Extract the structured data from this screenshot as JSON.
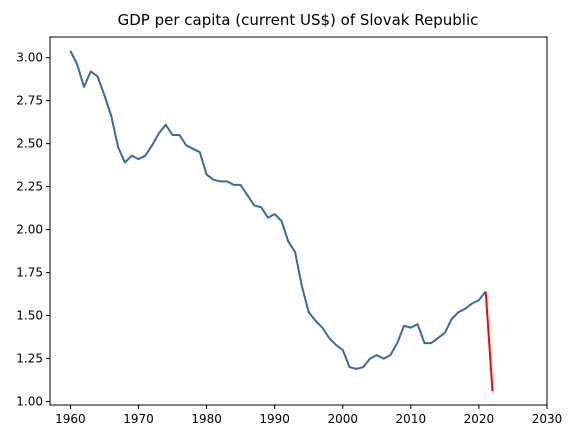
{
  "chart_data": {
    "type": "line",
    "title": "GDP per capita (current US$) of Slovak Republic",
    "xlabel": "",
    "ylabel": "",
    "xlim": [
      1957,
      2030
    ],
    "ylim": [
      0.98,
      3.12
    ],
    "x_ticks": [
      1960,
      1970,
      1980,
      1990,
      2000,
      2010,
      2020,
      2030
    ],
    "y_ticks": [
      1.0,
      1.25,
      1.5,
      1.75,
      2.0,
      2.25,
      2.5,
      2.75,
      3.0
    ],
    "grid": false,
    "series": [
      {
        "color": "#3a6a9f",
        "x": [
          1960,
          1961,
          1962,
          1963,
          1964,
          1965,
          1966,
          1967,
          1968,
          1969,
          1970,
          1971,
          1972,
          1973,
          1974,
          1975,
          1976,
          1977,
          1978,
          1979,
          1980,
          1981,
          1982,
          1983,
          1984,
          1985,
          1986,
          1987,
          1988,
          1989,
          1990,
          1991,
          1992,
          1993,
          1994,
          1995,
          1996,
          1997,
          1998,
          1999,
          2000,
          2001,
          2002,
          2003,
          2004,
          2005,
          2006,
          2007,
          2008,
          2009,
          2010,
          2011,
          2012,
          2013,
          2014,
          2015,
          2016,
          2017,
          2018,
          2019,
          2020,
          2021
        ],
        "y": [
          3.04,
          2.96,
          2.83,
          2.92,
          2.89,
          2.78,
          2.66,
          2.48,
          2.39,
          2.43,
          2.41,
          2.43,
          2.49,
          2.56,
          2.61,
          2.55,
          2.55,
          2.49,
          2.47,
          2.45,
          2.32,
          2.29,
          2.28,
          2.28,
          2.26,
          2.26,
          2.2,
          2.14,
          2.13,
          2.07,
          2.09,
          2.05,
          1.93,
          1.87,
          1.67,
          1.52,
          1.47,
          1.43,
          1.37,
          1.33,
          1.3,
          1.2,
          1.19,
          1.2,
          1.25,
          1.27,
          1.25,
          1.27,
          1.34,
          1.44,
          1.43,
          1.45,
          1.34,
          1.34,
          1.37,
          1.4,
          1.48,
          1.52,
          1.54,
          1.57,
          1.59,
          1.64
        ]
      },
      {
        "color": "#ff0000",
        "x": [
          2021,
          2022
        ],
        "y": [
          1.64,
          1.06
        ]
      }
    ]
  }
}
